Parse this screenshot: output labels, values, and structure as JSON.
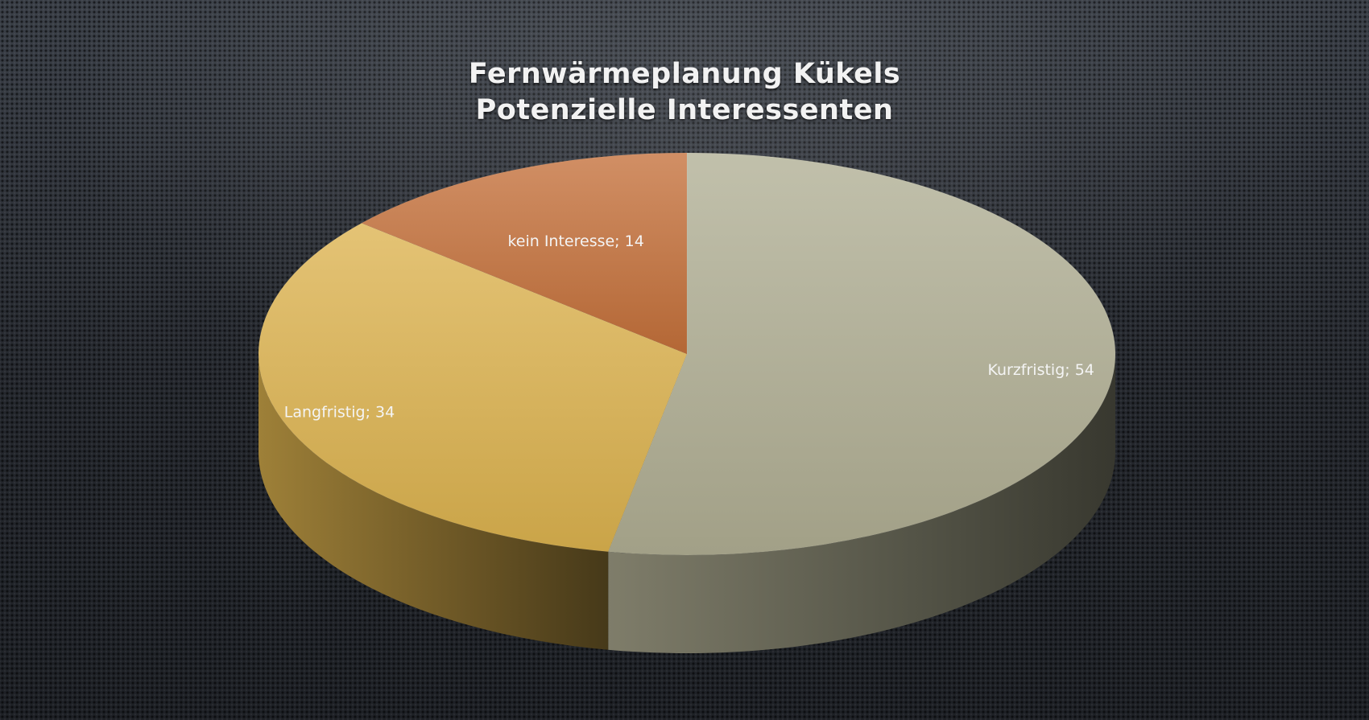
{
  "chart_data": {
    "type": "pie",
    "title_lines": [
      "Fernwärmeplanung  Kükels",
      "Potenzielle Interessenten"
    ],
    "slices": [
      {
        "name": "Kurzfristig",
        "value": 54,
        "color": "#b0ae93",
        "label": "Kurzfristig; 54"
      },
      {
        "name": "Langfristig",
        "value": 34,
        "color": "#dcb24e",
        "label": "Langfristig; 34"
      },
      {
        "name": "kein Interesse",
        "value": 14,
        "color": "#c4703a",
        "label": "kein Interesse; 14"
      }
    ],
    "start_angle_deg": 0,
    "direction": "clockwise",
    "style": "3d"
  }
}
